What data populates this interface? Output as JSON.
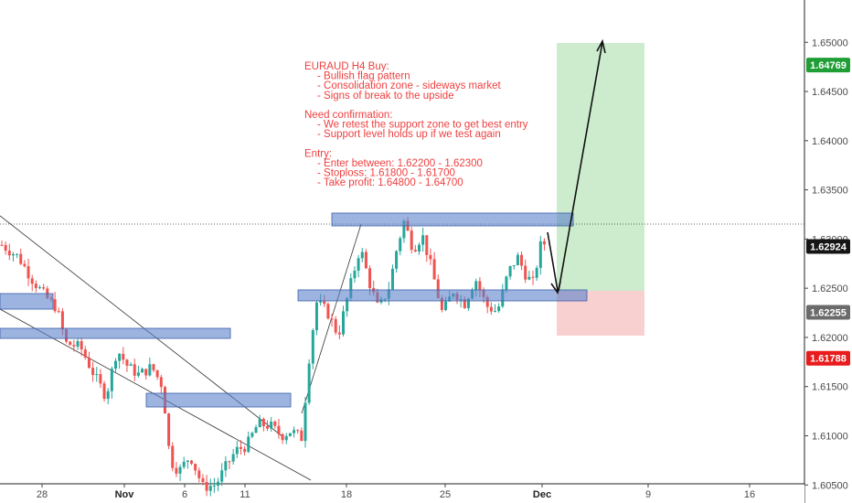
{
  "chart_data": {
    "type": "candlestick",
    "symbol": "EURAUD",
    "timeframe": "H4",
    "y_range": [
      1.6025,
      1.6543
    ],
    "x_ticks": [
      "28",
      "Nov",
      "6",
      "11",
      "18",
      "25",
      "Dec",
      "9",
      "16"
    ],
    "y_ticks": [
      "1.65000",
      "1.64500",
      "1.64000",
      "1.63500",
      "1.63000",
      "1.62500",
      "1.62000",
      "1.61500",
      "1.61000",
      "1.60500"
    ],
    "price_markers": [
      {
        "label": "1.64769",
        "color": "#1e9e35",
        "role": "take-profit"
      },
      {
        "label": "1.62924",
        "color": "#151515",
        "role": "last-price"
      },
      {
        "label": "1.62255",
        "color": "#6b6b6b",
        "role": "entry"
      },
      {
        "label": "1.61788",
        "color": "#e81c1c",
        "role": "stop-loss"
      }
    ],
    "annotation": [
      "EURAUD H4 Buy:",
      "- Bullish flag pattern",
      "- Consolidation zone - sideways market",
      "- Signs of break to the upside",
      "",
      "Need confirmation:",
      "- We retest the support zone to get best entry",
      "- Support level holds up if we test again",
      "",
      "Entry:",
      "- Enter between: 1.62200 - 1.62300",
      "- Stoploss: 1.61800 - 1.61700",
      "- Take profit: 1.64800 - 1.64700"
    ],
    "position": {
      "entry": 1.62255,
      "stop": 1.61788,
      "target": 1.64769
    },
    "zones": [
      {
        "low": 1.621,
        "high": 1.6225
      },
      {
        "low": 1.618,
        "high": 1.619
      },
      {
        "low": 1.6105,
        "high": 1.612
      },
      {
        "low": 1.629,
        "high": 1.6305
      },
      {
        "low": 1.6219,
        "high": 1.6232
      }
    ],
    "colors": {
      "up": "#26a69a",
      "down": "#ef5350",
      "zone": "#5b82cc",
      "profit": "#cdeccd",
      "loss": "#f9d0d0",
      "annotation": "#ef4040"
    }
  }
}
